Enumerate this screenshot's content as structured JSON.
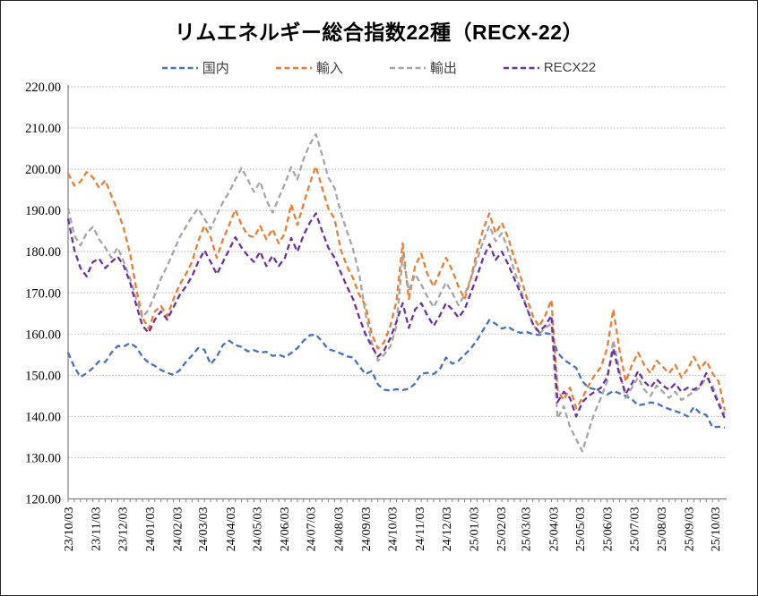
{
  "title": "リムエネルギー総合指数22種（RECX-22）",
  "legend": [
    {
      "key": "domestic",
      "label": "国内",
      "color": "#4472C4"
    },
    {
      "key": "import",
      "label": "輸入",
      "color": "#ED7D31"
    },
    {
      "key": "export",
      "label": "輸出",
      "color": "#A6A6A6"
    },
    {
      "key": "recx22",
      "label": "RECX22",
      "color": "#7030A0"
    }
  ],
  "chart_data": {
    "type": "line",
    "title": "リムエネルギー総合指数22種（RECX-22）",
    "line_style": "dashed",
    "grid": "horizontal dotted gridlines",
    "legend_position": "top",
    "ylim": [
      120,
      220
    ],
    "y_tick_step": 10,
    "y_tick_labels": [
      "220.00",
      "210.00",
      "200.00",
      "190.00",
      "180.00",
      "170.00",
      "160.00",
      "150.00",
      "140.00",
      "130.00",
      "120.00"
    ],
    "x_unit": "days since 2023-10-03, weekly samples (step 7 days)",
    "x_step_days": 7,
    "x_domain_days": [
      0,
      744
    ],
    "x_ticks": {
      "labels": [
        "23/10/03",
        "23/11/03",
        "23/12/03",
        "24/01/03",
        "24/02/03",
        "24/03/03",
        "24/04/03",
        "24/05/03",
        "24/06/03",
        "24/07/03",
        "24/08/03",
        "24/09/03",
        "24/10/03",
        "24/11/03",
        "24/12/03",
        "25/01/03",
        "25/02/03",
        "25/03/03",
        "25/04/03",
        "25/05/03",
        "25/06/03",
        "25/07/03",
        "25/08/03",
        "25/09/03",
        "25/10/03"
      ],
      "day_offsets": [
        0,
        31,
        61,
        92,
        123,
        152,
        183,
        213,
        244,
        274,
        305,
        336,
        366,
        397,
        427,
        458,
        489,
        517,
        548,
        578,
        609,
        639,
        670,
        701,
        731
      ]
    },
    "series": [
      {
        "name": "国内",
        "color": "#4472C4",
        "dash": "dashed",
        "values": [
          155.5,
          152,
          149.6,
          150.5,
          151.8,
          153.4,
          153.2,
          155.5,
          157.1,
          157,
          157.8,
          156.8,
          154.5,
          153,
          152.3,
          151.3,
          150.6,
          150.1,
          151.2,
          153.2,
          154.8,
          156.6,
          156.2,
          152.7,
          154.5,
          157.4,
          158.4,
          157.3,
          156.9,
          155.8,
          156.1,
          155.5,
          155.7,
          154.7,
          155,
          154.4,
          155.4,
          156.6,
          158.4,
          159.7,
          159.9,
          158.2,
          156.3,
          155.9,
          155.3,
          154.6,
          154.3,
          152.2,
          150.3,
          151,
          147.8,
          146.5,
          146.3,
          146.6,
          146.4,
          146.7,
          148,
          150.4,
          150.6,
          150.3,
          151.5,
          154.3,
          152.8,
          153.5,
          155,
          156.5,
          158.5,
          161,
          163.4,
          162.5,
          161.3,
          161.8,
          160.8,
          160.3,
          160.5,
          160,
          159.8,
          160.2,
          160,
          155.5,
          153.8,
          152.8,
          151.8,
          148.5,
          147,
          146.6,
          145.8,
          145.3,
          146.2,
          145.6,
          145,
          144.2,
          142.7,
          143,
          143.4,
          143.2,
          142.4,
          141.8,
          141.3,
          140.8,
          140,
          142.3,
          140.8,
          140.4,
          137.4,
          137.5,
          137.3
        ]
      },
      {
        "name": "輸入",
        "color": "#ED7D31",
        "dash": "dashed",
        "values": [
          199,
          196,
          197,
          199.3,
          198,
          195.5,
          197.3,
          193.5,
          190,
          185.5,
          179.5,
          171,
          164,
          161.3,
          165.5,
          166.8,
          164.3,
          168.5,
          172,
          174.5,
          177.5,
          182.5,
          186.3,
          183.5,
          178.5,
          183,
          186.5,
          190.2,
          186.5,
          184,
          183.5,
          186.2,
          183,
          185.5,
          182,
          184.5,
          191.5,
          186.5,
          191.5,
          196.5,
          200.7,
          195.5,
          190.5,
          188,
          180.5,
          176.5,
          173.5,
          169.5,
          167,
          160,
          156.5,
          158,
          162,
          168,
          182,
          168.5,
          176.5,
          179.5,
          174.5,
          171.5,
          175,
          178.5,
          175.5,
          171.5,
          168.5,
          173.5,
          180,
          185.5,
          189.3,
          184.5,
          187,
          183.5,
          178.5,
          174,
          169,
          164.5,
          161.8,
          164.5,
          168.3,
          146.5,
          144,
          147,
          142,
          144.5,
          147.5,
          150,
          152,
          156.5,
          166,
          156,
          148.5,
          152.5,
          155.5,
          152.5,
          150.5,
          153.5,
          152,
          150.5,
          152.5,
          149.5,
          151.5,
          154.5,
          151.5,
          153.5,
          150.5,
          148.5,
          141.5
        ]
      },
      {
        "name": "輸出",
        "color": "#A6A6A6",
        "dash": "dashed",
        "values": [
          190.5,
          184,
          181.5,
          184.5,
          186,
          183,
          181,
          178.5,
          181,
          177.5,
          173.5,
          168.5,
          164,
          166,
          169.5,
          173.5,
          176.5,
          180,
          183.5,
          186,
          188.5,
          190.5,
          188,
          185.5,
          189,
          192,
          194.5,
          197.5,
          200.3,
          197.5,
          194.5,
          197,
          192.5,
          189.5,
          193,
          196.5,
          200.5,
          197.5,
          202.5,
          206,
          208.5,
          203.5,
          198,
          195.5,
          189.5,
          185,
          180.5,
          174.5,
          165,
          158,
          153.5,
          155,
          157,
          162,
          179,
          170.5,
          174.5,
          172,
          169,
          166.5,
          169.5,
          172.5,
          170,
          167,
          169.5,
          173.5,
          178,
          182.5,
          186.3,
          182.5,
          184.5,
          180.5,
          175.5,
          171,
          166.5,
          162.5,
          160,
          161.5,
          162.5,
          139.5,
          142.5,
          137.5,
          134.5,
          131.5,
          136.5,
          141,
          144.5,
          148.5,
          158.5,
          151,
          144.5,
          147,
          149.5,
          146.5,
          145,
          147.5,
          146,
          144.5,
          146,
          144,
          145,
          146,
          147,
          149.5,
          147.5,
          143.5,
          140.5
        ]
      },
      {
        "name": "RECX22",
        "color": "#7030A0",
        "dash": "dashed",
        "values": [
          188,
          180.5,
          176,
          174,
          177.5,
          178.3,
          176,
          177.5,
          178.8,
          176.5,
          172.5,
          167,
          162,
          160.3,
          163.5,
          165.5,
          163.5,
          166.5,
          169.5,
          171.5,
          174,
          177.5,
          180.3,
          177.5,
          174.5,
          177.5,
          180.5,
          183.5,
          181,
          179,
          177.5,
          180,
          176.5,
          179,
          176.5,
          178.5,
          183.3,
          180,
          184,
          187,
          189.3,
          185,
          181,
          178.5,
          175,
          171.5,
          168.5,
          164,
          160,
          157,
          154.5,
          156,
          159,
          163,
          167.5,
          161.5,
          166,
          167.5,
          164.5,
          162,
          164.5,
          167.5,
          166,
          164,
          166,
          170,
          174,
          178.5,
          181.8,
          178,
          180,
          177,
          173.5,
          170,
          166.5,
          162.5,
          160.5,
          162,
          164.5,
          143.5,
          146,
          144.5,
          140,
          143.5,
          145,
          146,
          147,
          149.5,
          156.5,
          150,
          145.5,
          148,
          151,
          148.5,
          147,
          149,
          147.5,
          146.5,
          148,
          146,
          147,
          146.5,
          147.5,
          150.5,
          146.5,
          143,
          139.5
        ]
      }
    ]
  }
}
